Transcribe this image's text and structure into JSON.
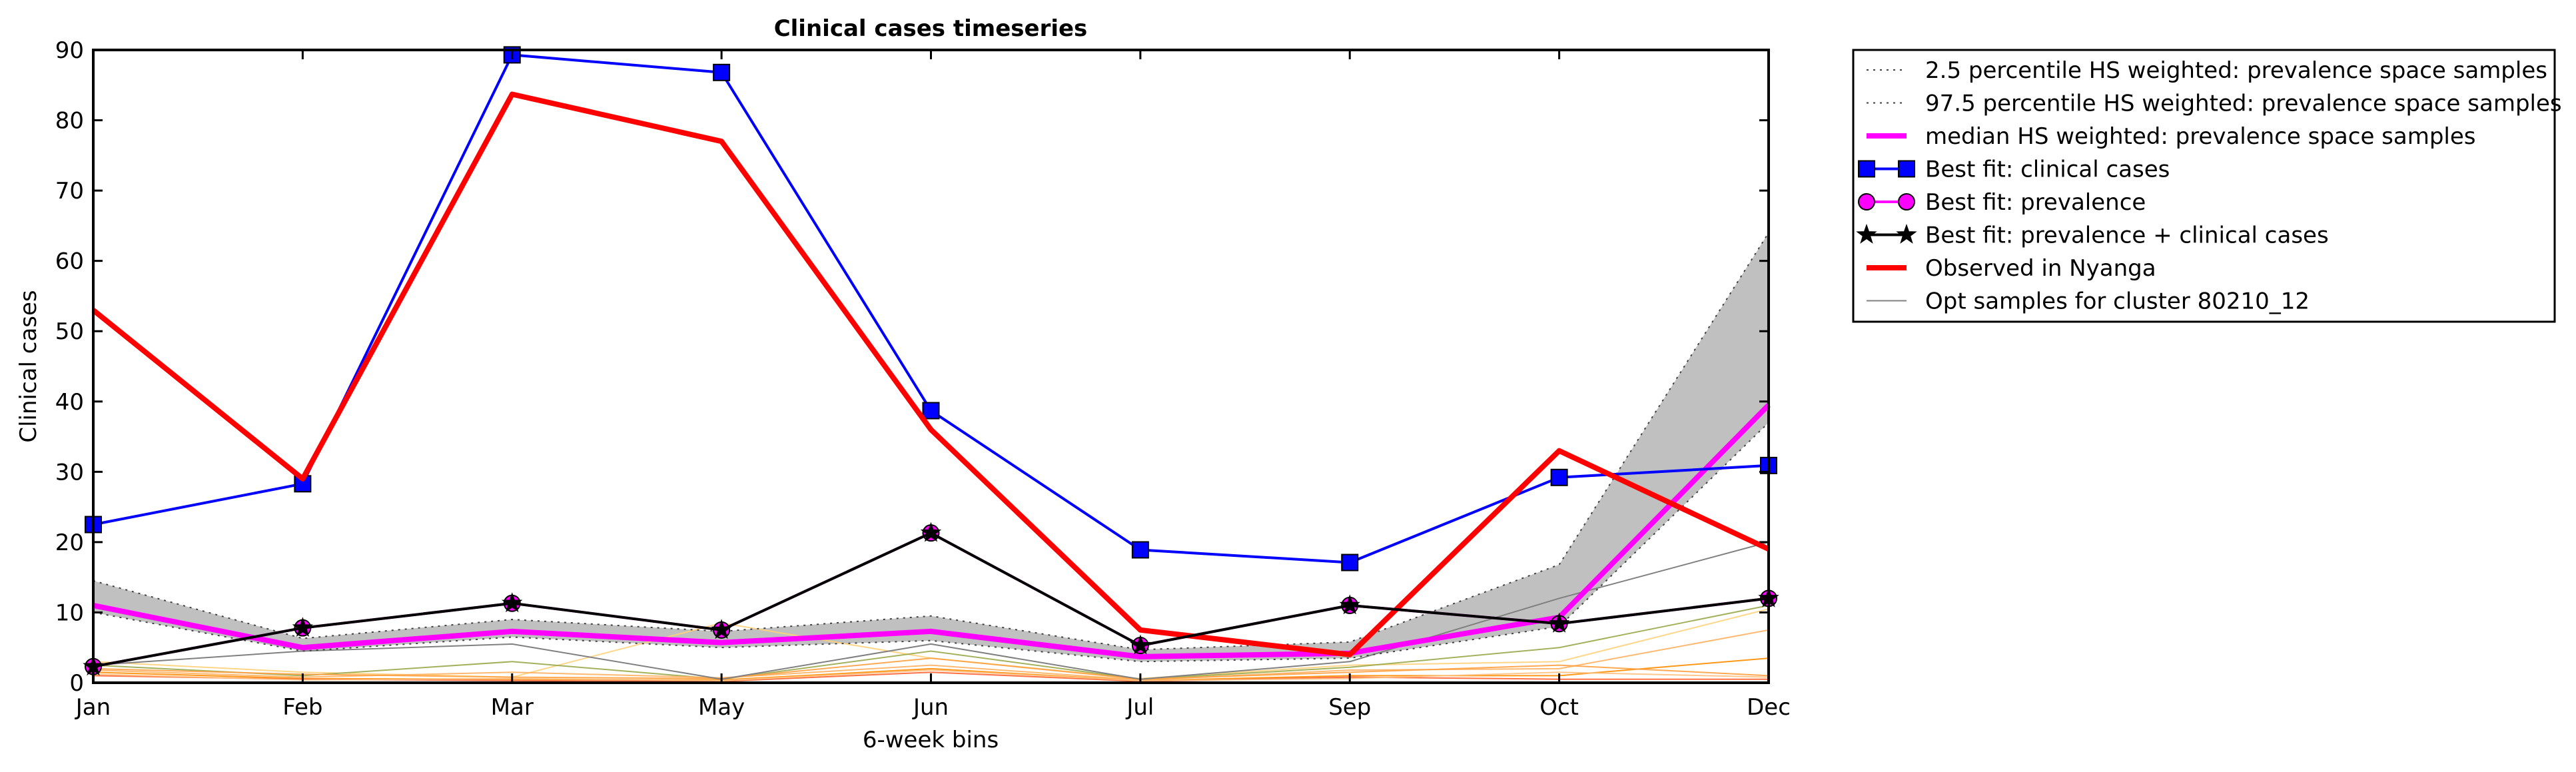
{
  "chart_data": {
    "type": "line",
    "title": "Clinical cases timeseries",
    "xlabel": "6-week bins",
    "ylabel": "Clinical cases",
    "categories": [
      "Jan",
      "Feb",
      "Mar",
      "May",
      "Jun",
      "Jul",
      "Sep",
      "Oct",
      "Dec"
    ],
    "ylim": [
      0,
      90
    ],
    "yticks": [
      0,
      10,
      20,
      30,
      40,
      50,
      60,
      70,
      80,
      90
    ],
    "grid": false,
    "legend_position": "outside-right-top",
    "band": {
      "lower": [
        10,
        4.5,
        6.5,
        5.0,
        6.0,
        3.0,
        3.5,
        8.0,
        37.0
      ],
      "upper": [
        14.5,
        6.3,
        9.0,
        7.3,
        9.5,
        4.7,
        5.8,
        16.8,
        64.0
      ],
      "color": "#c0c0c0"
    },
    "series": [
      {
        "name": "2.5 percentile HS weighted: prevalence space samples",
        "values": [
          10,
          4.5,
          6.5,
          5.0,
          6.0,
          3.0,
          3.5,
          8.0,
          37.0
        ],
        "color": "#404040",
        "style": "dotted",
        "marker": "none"
      },
      {
        "name": "97.5 percentile HS weighted: prevalence space samples",
        "values": [
          14.5,
          6.3,
          9.0,
          7.3,
          9.5,
          4.7,
          5.8,
          16.8,
          64.0
        ],
        "color": "#404040",
        "style": "dotted",
        "marker": "none"
      },
      {
        "name": "median HS weighted: prevalence space samples",
        "values": [
          11.0,
          5.0,
          7.3,
          5.7,
          7.3,
          3.7,
          4.2,
          9.3,
          39.5
        ],
        "color": "#ff00ff",
        "style": "solid-thick",
        "marker": "none"
      },
      {
        "name": "Best fit: clinical cases",
        "values": [
          22.5,
          28.3,
          89.3,
          86.8,
          38.7,
          18.9,
          17.1,
          29.2,
          30.9
        ],
        "color": "#0000ff",
        "style": "solid",
        "marker": "square"
      },
      {
        "name": "Best fit: prevalence",
        "values": [
          2.3,
          7.8,
          11.3,
          7.5,
          21.3,
          5.3,
          11.0,
          8.4,
          12.0
        ],
        "color": "#ff00ff",
        "style": "solid",
        "marker": "circle"
      },
      {
        "name": "Best fit: prevalence + clinical cases",
        "values": [
          2.3,
          7.8,
          11.3,
          7.5,
          21.3,
          5.3,
          11.0,
          8.4,
          12.0
        ],
        "color": "#000000",
        "style": "solid",
        "marker": "star"
      },
      {
        "name": "Observed in Nyanga",
        "values": [
          53.0,
          29.0,
          83.7,
          77.0,
          36.0,
          7.5,
          4.0,
          33.0,
          19.0
        ],
        "color": "#ff0000",
        "style": "solid-thick",
        "marker": "none"
      },
      {
        "name": "Opt samples for cluster 80210_12",
        "values": [
          2.5,
          4.5,
          5.5,
          0.5,
          5.5,
          0.5,
          3.0,
          12.0,
          20.0
        ],
        "color": "#808080",
        "style": "solid-thin",
        "marker": "none"
      }
    ],
    "extra_samples": [
      {
        "values": [
          3.0,
          1.5,
          0.8,
          8.5,
          3.5,
          0.6,
          2.5,
          3.0,
          10.5
        ],
        "color": "#ffd27a"
      },
      {
        "values": [
          2.5,
          1.0,
          3.0,
          0.5,
          4.5,
          0.5,
          2.2,
          5.0,
          11.0
        ],
        "color": "#9aa84a"
      },
      {
        "values": [
          1.8,
          0.8,
          1.5,
          0.7,
          2.5,
          0.4,
          1.8,
          2.0,
          7.5
        ],
        "color": "#ffb060"
      },
      {
        "values": [
          1.5,
          0.6,
          0.5,
          0.4,
          2.0,
          0.3,
          1.0,
          1.0,
          3.5
        ],
        "color": "#ff8c00"
      },
      {
        "values": [
          2.0,
          1.2,
          0.8,
          0.6,
          3.5,
          0.5,
          1.5,
          2.5,
          1.0
        ],
        "color": "#ffa040"
      },
      {
        "values": [
          1.0,
          0.5,
          0.3,
          0.2,
          1.5,
          0.2,
          0.8,
          0.5,
          0.5
        ],
        "color": "#ff6030"
      },
      {
        "values": [
          1.2,
          0.4,
          0.6,
          0.3,
          1.8,
          0.3,
          0.6,
          1.5,
          0.8
        ],
        "color": "#ffc080"
      }
    ]
  }
}
